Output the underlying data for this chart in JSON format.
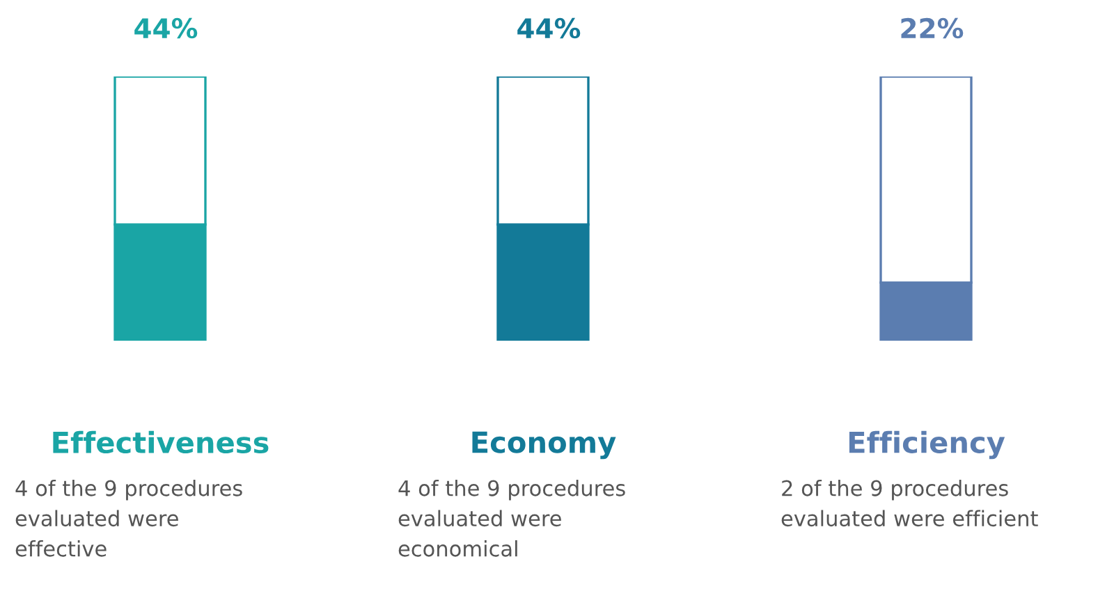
{
  "chart_data": {
    "type": "bar",
    "stacked": true,
    "tick_labels": false,
    "categories": [
      "Effectiveness",
      "Economy",
      "Efficiency"
    ],
    "series": [
      {
        "colors": [
          "#1aa5a5",
          "#137a98",
          "#5b7db0"
        ],
        "values": [
          44,
          44,
          22
        ],
        "value_labels": [
          "44%",
          "44%",
          "22%"
        ]
      },
      {
        "colors": [
          "#ffffff",
          "#ffffff",
          "#ffffff"
        ],
        "values": [
          56,
          56,
          78
        ]
      }
    ],
    "annotations": [
      "4 of the 9 procedures\nevaluated were\neffective",
      "4 of the 9 procedures\nevaluated were\neconomical",
      "2 of the 9 procedures\nevaluated were efficient"
    ],
    "legend": false
  }
}
